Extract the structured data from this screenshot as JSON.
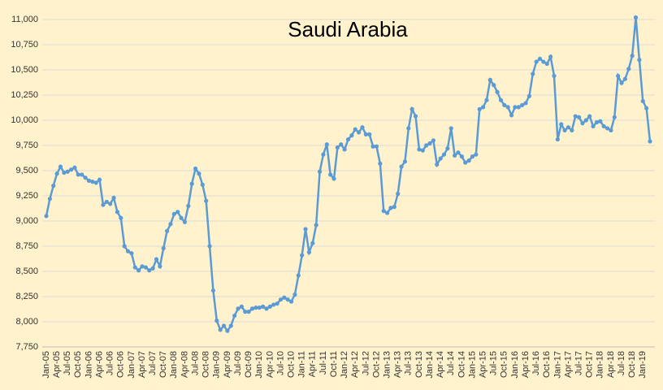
{
  "chart_data": {
    "type": "line",
    "title": "Saudi Arabia",
    "categories": [
      "Jan-05",
      null,
      null,
      "Apr-05",
      null,
      null,
      "Jul-05",
      null,
      null,
      "Oct-05",
      null,
      null,
      "Jan-06",
      null,
      null,
      "Apr-06",
      null,
      null,
      "Jul-06",
      null,
      null,
      "Oct-06",
      null,
      null,
      "Jan-07",
      null,
      null,
      "Apr-07",
      null,
      null,
      "Jul-07",
      null,
      null,
      "Oct-07",
      null,
      null,
      "Jan-08",
      null,
      null,
      "Apr-08",
      null,
      null,
      "Jul-08",
      null,
      null,
      "Oct-08",
      null,
      null,
      "Jan-09",
      null,
      null,
      "Apr-09",
      null,
      null,
      "Jul-09",
      null,
      null,
      "Oct-09",
      null,
      null,
      "Jan-10",
      null,
      null,
      "Apr-10",
      null,
      null,
      "Jul-10",
      null,
      null,
      "Oct-10",
      null,
      null,
      "Jan-11",
      null,
      null,
      "Apr-11",
      null,
      null,
      "Jul-11",
      null,
      null,
      "Oct-11",
      null,
      null,
      "Jan-12",
      null,
      null,
      "Apr-12",
      null,
      null,
      "Jul-12",
      null,
      null,
      "Oct-12",
      null,
      null,
      "Jan-13",
      null,
      null,
      "Apr-13",
      null,
      null,
      "Jul-13",
      null,
      null,
      "Oct-13",
      null,
      null,
      "Jan-14",
      null,
      null,
      "Apr-14",
      null,
      null,
      "Jul-14",
      null,
      null,
      "Oct-14",
      null,
      null,
      "Jan-15",
      null,
      null,
      "Apr-15",
      null,
      null,
      "Jul-15",
      null,
      null,
      "Oct-15",
      null,
      null,
      "Jan-16",
      null,
      null,
      "Apr-16",
      null,
      null,
      "Jul-16",
      null,
      null,
      "Oct-16",
      null,
      null,
      "Jan-17",
      null,
      null,
      "Apr-17",
      null,
      null,
      "Jul-17",
      null,
      null,
      "Oct-17",
      null,
      null,
      "Jan-18",
      null,
      null,
      "Apr-18",
      null,
      null,
      "Jul-18",
      null,
      null,
      "Oct-18",
      null,
      null,
      "Jan-19",
      null,
      null
    ],
    "values": [
      9050,
      9220,
      9350,
      9470,
      9540,
      9480,
      9490,
      9510,
      9530,
      9460,
      9460,
      9430,
      9400,
      9390,
      9380,
      9410,
      9160,
      9190,
      9170,
      9230,
      9090,
      9030,
      8750,
      8700,
      8680,
      8540,
      8510,
      8550,
      8540,
      8510,
      8530,
      8620,
      8550,
      8730,
      8900,
      8970,
      9070,
      9090,
      9030,
      8990,
      9150,
      9370,
      9520,
      9470,
      9360,
      9200,
      8750,
      8310,
      8010,
      7920,
      7960,
      7910,
      7960,
      8060,
      8130,
      8150,
      8100,
      8100,
      8130,
      8140,
      8140,
      8150,
      8130,
      8150,
      8170,
      8180,
      8220,
      8240,
      8220,
      8200,
      8270,
      8460,
      8660,
      8920,
      8690,
      8780,
      8960,
      9490,
      9660,
      9760,
      9460,
      9420,
      9730,
      9760,
      9710,
      9810,
      9850,
      9910,
      9880,
      9930,
      9860,
      9860,
      9740,
      9740,
      9570,
      9100,
      9080,
      9130,
      9140,
      9270,
      9540,
      9590,
      9920,
      10110,
      10040,
      9710,
      9700,
      9750,
      9770,
      9800,
      9560,
      9620,
      9660,
      9720,
      9920,
      9650,
      9680,
      9640,
      9580,
      9600,
      9640,
      9660,
      10110,
      10130,
      10200,
      10400,
      10350,
      10280,
      10200,
      10150,
      10130,
      10050,
      10130,
      10130,
      10150,
      10170,
      10240,
      10460,
      10580,
      10610,
      10580,
      10560,
      10630,
      10440,
      9810,
      9960,
      9900,
      9930,
      9900,
      10040,
      10030,
      9970,
      10000,
      10040,
      9940,
      9980,
      9990,
      9940,
      9920,
      9900,
      10030,
      10440,
      10370,
      10410,
      10510,
      10640,
      11020,
      10600,
      10190,
      10120,
      9790
    ],
    "color": "#5b9bd5",
    "ylim": [
      7750,
      11000
    ],
    "yticks": [
      {
        "value": 7750,
        "label": "7,750"
      },
      {
        "value": 8000,
        "label": "8,000"
      },
      {
        "value": 8250,
        "label": "8,250"
      },
      {
        "value": 8500,
        "label": "8,500"
      },
      {
        "value": 8750,
        "label": "8,750"
      },
      {
        "value": 9000,
        "label": "9,000"
      },
      {
        "value": 9250,
        "label": "9,250"
      },
      {
        "value": 9500,
        "label": "9,500"
      },
      {
        "value": 9750,
        "label": "9,750"
      },
      {
        "value": 10000,
        "label": "10,000"
      },
      {
        "value": 10250,
        "label": "10,250"
      },
      {
        "value": 10500,
        "label": "10,500"
      },
      {
        "value": 10750,
        "label": "10,750"
      },
      {
        "value": 11000,
        "label": "11,000"
      }
    ],
    "grid": true
  }
}
